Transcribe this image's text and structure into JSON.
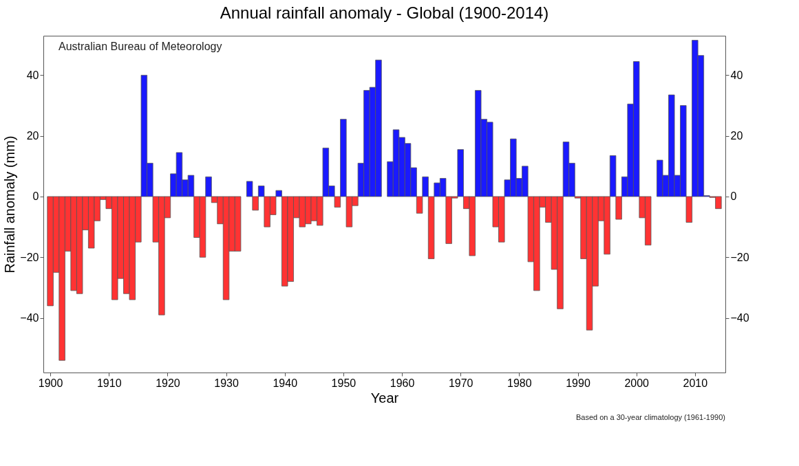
{
  "chart_data": {
    "type": "bar",
    "title": "Annual rainfall anomaly - Global (1900-2014)",
    "xlabel": "Year",
    "ylabel": "Rainfall anomaly (mm)",
    "annotations": [
      "Australian Bureau of Meteorology",
      "Based on a 30-year climatology (1961-1990)"
    ],
    "x": [
      1900,
      1901,
      1902,
      1903,
      1904,
      1905,
      1906,
      1907,
      1908,
      1909,
      1910,
      1911,
      1912,
      1913,
      1914,
      1915,
      1916,
      1917,
      1918,
      1919,
      1920,
      1921,
      1922,
      1923,
      1924,
      1925,
      1926,
      1927,
      1928,
      1929,
      1930,
      1931,
      1932,
      1933,
      1934,
      1935,
      1936,
      1937,
      1938,
      1939,
      1940,
      1941,
      1942,
      1943,
      1944,
      1945,
      1946,
      1947,
      1948,
      1949,
      1950,
      1951,
      1952,
      1953,
      1954,
      1955,
      1956,
      1957,
      1958,
      1959,
      1960,
      1961,
      1962,
      1963,
      1964,
      1965,
      1966,
      1967,
      1968,
      1969,
      1970,
      1971,
      1972,
      1973,
      1974,
      1975,
      1976,
      1977,
      1978,
      1979,
      1980,
      1981,
      1982,
      1983,
      1984,
      1985,
      1986,
      1987,
      1988,
      1989,
      1990,
      1991,
      1992,
      1993,
      1994,
      1995,
      1996,
      1997,
      1998,
      1999,
      2000,
      2001,
      2002,
      2003,
      2004,
      2005,
      2006,
      2007,
      2008,
      2009,
      2010,
      2011,
      2012,
      2013,
      2014
    ],
    "values": [
      -36,
      -25,
      -54,
      -18,
      -31,
      -32,
      -11,
      -17,
      -8,
      -1,
      -4,
      -34,
      -27,
      -32,
      -34,
      -15,
      40,
      11,
      -15,
      -39,
      -7,
      7.5,
      14.5,
      5.5,
      7,
      -13.5,
      -20,
      6.5,
      -2,
      -9,
      -34,
      -18,
      -18,
      null,
      5,
      -4.5,
      3.5,
      -10,
      -6,
      2,
      -29.5,
      -28,
      -7,
      -10,
      -9,
      -8,
      -9.5,
      16,
      3.5,
      -3.5,
      25.5,
      -10,
      -3,
      11,
      35,
      36,
      45,
      null,
      11.5,
      22,
      19.5,
      17.5,
      9.5,
      -5.5,
      6.5,
      -20.5,
      4.5,
      6,
      -15.5,
      -0.5,
      15.5,
      -4,
      -19.5,
      35,
      25.5,
      24.5,
      -10,
      -15,
      5.5,
      19,
      6,
      10,
      -21.5,
      -31,
      -3.5,
      -8.5,
      -24,
      -37,
      18,
      11,
      -0.5,
      -20.5,
      -44,
      -29.5,
      -8,
      -19,
      13.5,
      -7.5,
      6.5,
      30.5,
      44.5,
      -7,
      -16,
      null,
      12,
      7,
      33.5,
      7,
      30,
      -8.5,
      51.5,
      46.5,
      0.3,
      -0.3,
      -4
    ],
    "colors": [
      "#ff3333",
      "#ff3333",
      "#ff3333",
      "#ff3333",
      "#ff3333",
      "#ff3333",
      "#ff3333",
      "#ff3333",
      "#ff3333",
      "#ff3333",
      "#ff3333",
      "#ff3333",
      "#ff3333",
      "#ff3333",
      "#ff3333",
      "#ff3333",
      "#1a1aff",
      "#1a1aff",
      "#ff3333",
      "#ff3333",
      "#ff3333",
      "#1a1aff",
      "#1a1aff",
      "#1a1aff",
      "#1a1aff",
      "#ff3333",
      "#ff3333",
      "#1a1aff",
      "#ff3333",
      "#ff3333",
      "#ff3333",
      "#ff3333",
      "#ff3333",
      "#1a1aff",
      "#1a1aff",
      "#ff3333",
      "#1a1aff",
      "#ff3333",
      "#ff3333",
      "#1a1aff",
      "#ff3333",
      "#ff3333",
      "#ff3333",
      "#ff3333",
      "#ff3333",
      "#ff3333",
      "#ff3333",
      "#1a1aff",
      "#1a1aff",
      "#ff3333",
      "#1a1aff",
      "#ff3333",
      "#ff3333",
      "#1a1aff",
      "#1a1aff",
      "#1a1aff",
      "#1a1aff",
      "#1a1aff",
      "#1a1aff",
      "#1a1aff",
      "#1a1aff",
      "#1a1aff",
      "#1a1aff",
      "#ff3333",
      "#1a1aff",
      "#ff3333",
      "#1a1aff",
      "#1a1aff",
      "#ff3333",
      "#ff3333",
      "#1a1aff",
      "#ff3333",
      "#ff3333",
      "#1a1aff",
      "#1a1aff",
      "#1a1aff",
      "#ff3333",
      "#ff3333",
      "#1a1aff",
      "#1a1aff",
      "#1a1aff",
      "#1a1aff",
      "#ff3333",
      "#ff3333",
      "#ff3333",
      "#ff3333",
      "#ff3333",
      "#ff3333",
      "#1a1aff",
      "#1a1aff",
      "#ff3333",
      "#ff3333",
      "#ff3333",
      "#ff3333",
      "#ff3333",
      "#ff3333",
      "#1a1aff",
      "#ff3333",
      "#1a1aff",
      "#1a1aff",
      "#1a1aff",
      "#ff3333",
      "#ff3333",
      "#1a1aff",
      "#1a1aff",
      "#1a1aff",
      "#1a1aff",
      "#1a1aff",
      "#1a1aff",
      "#ff3333",
      "#1a1aff",
      "#1a1aff",
      "#1a1aff",
      "#ff3333",
      "#ff3333"
    ],
    "xlim": [
      1899.4,
      2014.6
    ],
    "xticks": [
      1900,
      1910,
      1920,
      1930,
      1940,
      1950,
      1960,
      1970,
      1980,
      1990,
      2000,
      2010
    ],
    "ylim": [
      -58,
      53
    ],
    "yticks": [
      -40,
      -20,
      0,
      20,
      40
    ],
    "y2lim": [
      -58,
      53
    ],
    "y2ticks": [
      -40,
      -20,
      0,
      20,
      40
    ]
  }
}
